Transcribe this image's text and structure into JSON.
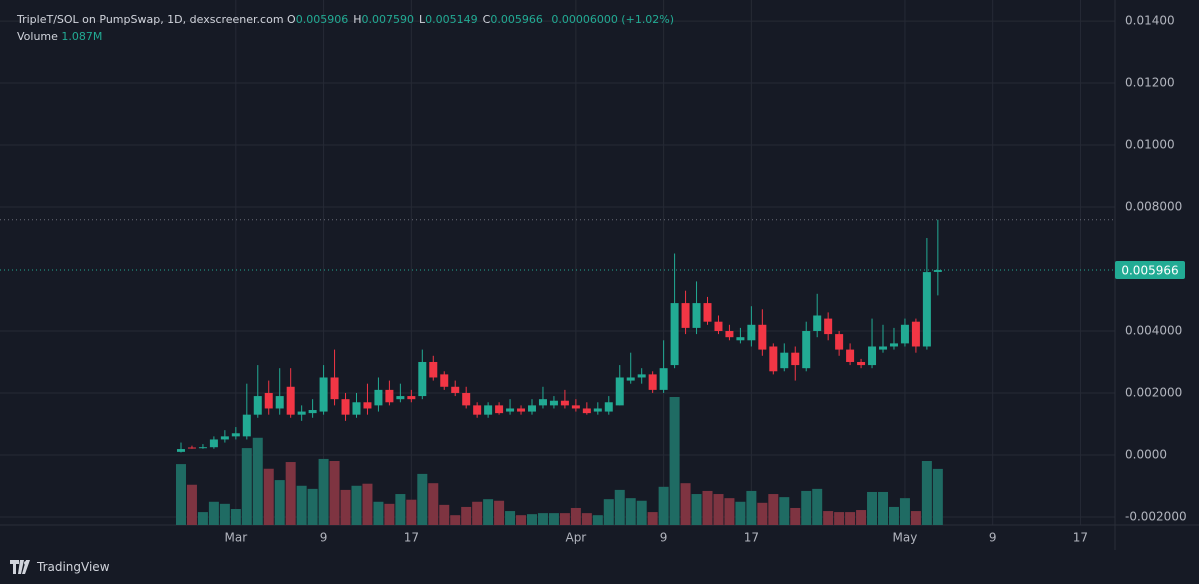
{
  "header": {
    "symbol": "TripleT/SOL on PumpSwap, 1D, dexscreener.com",
    "ohlc": [
      {
        "key": "O",
        "value": "0.005906"
      },
      {
        "key": "H",
        "value": "0.007590"
      },
      {
        "key": "L",
        "value": "0.005149"
      },
      {
        "key": "C",
        "value": "0.005966"
      }
    ],
    "change": "0.00006000 (+1.02%)",
    "volume_key": "Volume",
    "volume_value": "1.087M"
  },
  "footer": {
    "brand": "TradingView"
  },
  "chart_data": {
    "type": "candlestick",
    "up_color": "#22ab94",
    "down_color": "#f23645",
    "up_volume_color": "#1f6b63",
    "down_volume_color": "#7e3441",
    "grid": true,
    "x": [
      0,
      1,
      2,
      3,
      4,
      5,
      6,
      7,
      8,
      9,
      10,
      11,
      12,
      13,
      14,
      15,
      16,
      17,
      18,
      19,
      20,
      21,
      22,
      23,
      24,
      25,
      26,
      27,
      28,
      29,
      30,
      31,
      32,
      33,
      34,
      35,
      36,
      37,
      38,
      39,
      40,
      41,
      42,
      43,
      44,
      45,
      46,
      47,
      48,
      49,
      50,
      51,
      52,
      53,
      54,
      55,
      56,
      57,
      58,
      59,
      60,
      61,
      62,
      63,
      64,
      65,
      66,
      67,
      68,
      69
    ],
    "open": [
      0.0001,
      0.00024,
      0.00022,
      0.00025,
      0.0005,
      0.0006,
      0.0006,
      0.0013,
      0.002,
      0.0015,
      0.0022,
      0.0013,
      0.00135,
      0.0014,
      0.0025,
      0.0018,
      0.0013,
      0.0017,
      0.0016,
      0.0021,
      0.0018,
      0.0019,
      0.0019,
      0.003,
      0.0026,
      0.0022,
      0.002,
      0.0016,
      0.0013,
      0.0016,
      0.0014,
      0.0015,
      0.0014,
      0.0016,
      0.0016,
      0.00175,
      0.0016,
      0.0015,
      0.0014,
      0.0014,
      0.0016,
      0.0024,
      0.0025,
      0.0026,
      0.0021,
      0.0029,
      0.0049,
      0.0041,
      0.0049,
      0.0043,
      0.004,
      0.0037,
      0.0037,
      0.0042,
      0.0035,
      0.0028,
      0.0033,
      0.0028,
      0.004,
      0.0044,
      0.0039,
      0.0034,
      0.003,
      0.0029,
      0.0034,
      0.0035,
      0.0036,
      0.0043,
      0.0035,
      0.005906
    ],
    "high": [
      0.0004,
      0.0003,
      0.00035,
      0.0006,
      0.0008,
      0.0009,
      0.0023,
      0.0029,
      0.0024,
      0.0028,
      0.0028,
      0.0016,
      0.0018,
      0.0029,
      0.0034,
      0.002,
      0.002,
      0.0023,
      0.0025,
      0.0024,
      0.0023,
      0.0021,
      0.0034,
      0.0032,
      0.0027,
      0.0024,
      0.0022,
      0.0017,
      0.0017,
      0.0017,
      0.0018,
      0.0016,
      0.0018,
      0.0022,
      0.0019,
      0.0021,
      0.0018,
      0.0017,
      0.0017,
      0.0019,
      0.0029,
      0.0033,
      0.0028,
      0.0027,
      0.0037,
      0.0065,
      0.0053,
      0.0056,
      0.0051,
      0.0045,
      0.0042,
      0.0041,
      0.0048,
      0.0047,
      0.0036,
      0.0036,
      0.0035,
      0.0043,
      0.0052,
      0.0046,
      0.004,
      0.0036,
      0.0031,
      0.0044,
      0.0042,
      0.0041,
      0.0044,
      0.0044,
      0.007,
      0.00759
    ],
    "low": [
      8e-05,
      0.0002,
      0.0002,
      0.0002,
      0.0004,
      0.0005,
      0.0005,
      0.0012,
      0.0013,
      0.0013,
      0.0012,
      0.0011,
      0.0012,
      0.0013,
      0.0016,
      0.0011,
      0.0012,
      0.0013,
      0.0014,
      0.0016,
      0.0017,
      0.0017,
      0.0018,
      0.0024,
      0.0021,
      0.0019,
      0.0015,
      0.0012,
      0.0012,
      0.0013,
      0.0013,
      0.0013,
      0.0013,
      0.0015,
      0.0015,
      0.0015,
      0.0014,
      0.0013,
      0.0013,
      0.0013,
      0.0016,
      0.0023,
      0.0023,
      0.002,
      0.002,
      0.0028,
      0.0039,
      0.0039,
      0.0042,
      0.0039,
      0.0037,
      0.0036,
      0.0035,
      0.0032,
      0.0026,
      0.0027,
      0.0024,
      0.0027,
      0.0038,
      0.0037,
      0.0032,
      0.0029,
      0.0028,
      0.0028,
      0.0033,
      0.0034,
      0.0035,
      0.0033,
      0.0034,
      0.005149
    ],
    "close": [
      0.00019,
      0.00022,
      0.00025,
      0.0005,
      0.0006,
      0.0007,
      0.0013,
      0.0019,
      0.0015,
      0.0019,
      0.0013,
      0.0014,
      0.00145,
      0.0025,
      0.0018,
      0.0013,
      0.0017,
      0.0015,
      0.0021,
      0.0017,
      0.0019,
      0.0018,
      0.003,
      0.0025,
      0.0022,
      0.002,
      0.0016,
      0.0013,
      0.0016,
      0.00135,
      0.0015,
      0.0014,
      0.0016,
      0.0018,
      0.00175,
      0.0016,
      0.0015,
      0.00135,
      0.0015,
      0.0017,
      0.0025,
      0.0025,
      0.0026,
      0.0021,
      0.0028,
      0.0049,
      0.0041,
      0.0049,
      0.0043,
      0.004,
      0.0038,
      0.0038,
      0.0042,
      0.0034,
      0.0027,
      0.0033,
      0.0029,
      0.004,
      0.0045,
      0.0039,
      0.0034,
      0.003,
      0.0029,
      0.0035,
      0.0035,
      0.0036,
      0.0042,
      0.0035,
      0.0059,
      0.005966
    ],
    "volume": [
      1180000,
      780000,
      250000,
      450000,
      410000,
      310000,
      1490000,
      1690000,
      1090000,
      870000,
      1220000,
      760000,
      700000,
      1280000,
      1240000,
      680000,
      760000,
      800000,
      450000,
      410000,
      600000,
      490000,
      990000,
      810000,
      390000,
      190000,
      350000,
      450000,
      500000,
      470000,
      270000,
      190000,
      210000,
      230000,
      230000,
      230000,
      330000,
      230000,
      190000,
      500000,
      680000,
      520000,
      470000,
      250000,
      740000,
      2480000,
      810000,
      600000,
      660000,
      600000,
      520000,
      450000,
      660000,
      430000,
      600000,
      540000,
      330000,
      660000,
      700000,
      270000,
      250000,
      250000,
      290000,
      640000,
      640000,
      350000,
      520000,
      270000,
      1240000,
      1087000
    ],
    "xlim": [
      -16.5,
      85.15
    ],
    "xticks": [
      {
        "value": 5,
        "label": "Mar"
      },
      {
        "value": 13,
        "label": "9"
      },
      {
        "value": 21,
        "label": "17"
      },
      {
        "value": 36,
        "label": "Apr"
      },
      {
        "value": 44,
        "label": "9"
      },
      {
        "value": 52,
        "label": "17"
      },
      {
        "value": 66,
        "label": "May"
      },
      {
        "value": 74,
        "label": "9"
      },
      {
        "value": 82,
        "label": "17"
      }
    ],
    "ylim": [
      -0.00226,
      0.01468
    ],
    "yticks": [
      {
        "value": 0.014,
        "label": "0.01400"
      },
      {
        "value": 0.012,
        "label": "0.01200"
      },
      {
        "value": 0.01,
        "label": "0.01000"
      },
      {
        "value": 0.008,
        "label": "0.008000"
      },
      {
        "value": 0.004,
        "label": "0.004000"
      },
      {
        "value": 0.002,
        "label": "0.002000"
      },
      {
        "value": 0,
        "label": "0.0000"
      },
      {
        "value": -0.002,
        "label": "-0.002000"
      }
    ]
  }
}
